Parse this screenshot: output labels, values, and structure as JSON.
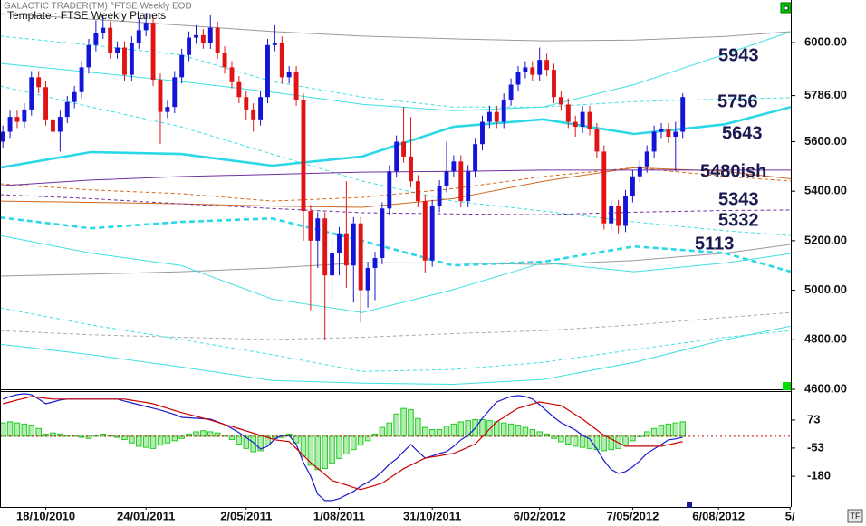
{
  "chart_data": [
    {
      "type": "candlestick",
      "subtitle": "GALACTIC TRADER(TM)   ^FTSE Weekly EOD",
      "title": "Template : FTSE Weekly Planets",
      "xlim": [
        -0.4,
        110.1
      ],
      "ylim": [
        4600,
        6172
      ],
      "yticks": [
        {
          "value": 6000,
          "label": "6000.00"
        },
        {
          "value": 5600,
          "label": "5600.00"
        },
        {
          "value": 5400,
          "label": "5400.00"
        },
        {
          "value": 5200,
          "label": "5200.00"
        },
        {
          "value": 5000,
          "label": "5000.00"
        },
        {
          "value": 4800,
          "label": "4800.00"
        },
        {
          "value": 4600,
          "label": "4600.00"
        }
      ],
      "last_price": {
        "value": 5786,
        "label": "5786.00"
      },
      "up_color": "#1414d8",
      "down_color": "#e01414",
      "open": [
        5600,
        5640,
        5700,
        5680,
        5730,
        5860,
        5820,
        5690,
        5640,
        5700,
        5760,
        5800,
        5900,
        5990,
        6040,
        6060,
        5960,
        5980,
        5870,
        6000,
        6050,
        6080,
        5850,
        5720,
        5740,
        5860,
        5950,
        6020,
        6030,
        6000,
        6060,
        5960,
        5900,
        5840,
        5780,
        5730,
        5690,
        5780,
        5990,
        6000,
        5860,
        5880,
        5770,
        5320,
        5200,
        5290,
        5060,
        5150,
        5230,
        5100,
        5270,
        5000,
        5090,
        5130,
        5330,
        5480,
        5600,
        5540,
        5440,
        5360,
        5120,
        5340,
        5420,
        5480,
        5520,
        5360,
        5480,
        5590,
        5680,
        5720,
        5680,
        5770,
        5830,
        5880,
        5900,
        5870,
        5930,
        5890,
        5780,
        5750,
        5680,
        5660,
        5720,
        5650,
        5560,
        5270,
        5340,
        5260,
        5380,
        5460,
        5500,
        5560,
        5640,
        5650,
        5620,
        5640
      ],
      "high": [
        5665,
        5725,
        5725,
        5755,
        5885,
        5885,
        5845,
        5715,
        5725,
        5785,
        5825,
        5925,
        6015,
        6090,
        6110,
        6085,
        6005,
        6005,
        6025,
        6100,
        6120,
        6105,
        5875,
        5765,
        5885,
        5975,
        6045,
        6070,
        6055,
        6110,
        6085,
        5985,
        5925,
        5865,
        5805,
        5755,
        5805,
        6015,
        6070,
        6025,
        5905,
        5905,
        5795,
        5345,
        5315,
        5315,
        5215,
        5255,
        5440,
        5295,
        5295,
        5115,
        5155,
        5355,
        5505,
        5625,
        5740,
        5700,
        5465,
        5385,
        5365,
        5445,
        5600,
        5545,
        5545,
        5505,
        5615,
        5705,
        5745,
        5745,
        5795,
        5855,
        5905,
        5925,
        5925,
        5980,
        5955,
        5915,
        5805,
        5775,
        5705,
        5745,
        5745,
        5675,
        5585,
        5365,
        5365,
        5405,
        5485,
        5525,
        5585,
        5665,
        5675,
        5675,
        5680,
        5795
      ],
      "low": [
        5575,
        5615,
        5655,
        5655,
        5705,
        5795,
        5665,
        5580,
        5560,
        5675,
        5735,
        5775,
        5875,
        5965,
        6015,
        5935,
        5935,
        5845,
        5845,
        5975,
        6025,
        5825,
        5590,
        5695,
        5715,
        5835,
        5925,
        5995,
        5975,
        5975,
        5935,
        5875,
        5815,
        5755,
        5690,
        5640,
        5665,
        5755,
        5965,
        5835,
        5835,
        5745,
        5200,
        4920,
        5090,
        4800,
        4960,
        5060,
        5010,
        4950,
        4870,
        4930,
        4960,
        5105,
        5305,
        5455,
        5515,
        5415,
        5335,
        5070,
        5095,
        5315,
        5395,
        5455,
        5335,
        5335,
        5455,
        5565,
        5655,
        5655,
        5655,
        5745,
        5805,
        5855,
        5845,
        5845,
        5865,
        5755,
        5725,
        5655,
        5620,
        5635,
        5625,
        5535,
        5245,
        5245,
        5230,
        5235,
        5355,
        5435,
        5475,
        5535,
        5615,
        5595,
        5480,
        5615
      ],
      "close": [
        5640,
        5700,
        5680,
        5730,
        5860,
        5820,
        5690,
        5640,
        5700,
        5760,
        5800,
        5900,
        5990,
        6040,
        6060,
        5960,
        5980,
        5870,
        6000,
        6050,
        6080,
        5850,
        5720,
        5740,
        5860,
        5950,
        6020,
        6030,
        6000,
        6060,
        5960,
        5900,
        5840,
        5780,
        5730,
        5690,
        5780,
        5990,
        6000,
        5860,
        5880,
        5770,
        5320,
        5200,
        5290,
        5060,
        5150,
        5230,
        5100,
        5270,
        5000,
        5090,
        5130,
        5330,
        5480,
        5600,
        5540,
        5440,
        5360,
        5120,
        5340,
        5420,
        5480,
        5520,
        5360,
        5480,
        5590,
        5680,
        5720,
        5680,
        5770,
        5830,
        5880,
        5900,
        5870,
        5930,
        5890,
        5780,
        5750,
        5680,
        5660,
        5720,
        5650,
        5560,
        5270,
        5340,
        5260,
        5380,
        5460,
        5500,
        5560,
        5640,
        5650,
        5620,
        5640,
        5780
      ],
      "planet_lines": {
        "x": [
          -0.4,
          12.3,
          24.9,
          37.6,
          50.2,
          62.9,
          75.5,
          88.2,
          100.9,
          110.1
        ],
        "lines": [
          {
            "color": "#999999",
            "values": [
              6117,
              6095,
              6070,
              6045,
              6026,
              6015,
              6007,
              6010,
              6025,
              6044
            ]
          },
          {
            "color": "#999999",
            "values": [
              5057,
              5065,
              5075,
              5090,
              5111,
              5110,
              5104,
              5120,
              5150,
              5185
            ]
          },
          {
            "color": "#aaaaaa",
            "dashed": true,
            "values": [
              4837,
              4820,
              4810,
              4801,
              4810,
              4825,
              4837,
              4860,
              4890,
              4910
            ]
          },
          {
            "color": "#3ee0e0",
            "values": [
              5916,
              5880,
              5843,
              5800,
              5751,
              5725,
              5740,
              5830,
              5953,
              6044
            ]
          },
          {
            "color": "#3ee0e0",
            "dashed": true,
            "values": [
              6026,
              5990,
              5950,
              5843,
              5780,
              5740,
              5740,
              5762,
              5772,
              5777
            ]
          },
          {
            "color": "#3ee0e0",
            "values": [
              5221,
              5150,
              5100,
              4965,
              4910,
              5002,
              5111,
              5075,
              5110,
              5148
            ]
          },
          {
            "color": "#3ee0e0",
            "values": [
              4782,
              4740,
              4690,
              4636,
              4625,
              4620,
              4640,
              4709,
              4800,
              4855
            ]
          },
          {
            "color": "#3ee0e0",
            "dashed": true,
            "values": [
              4929,
              4860,
              4801,
              4740,
              4672,
              4680,
              4709,
              4760,
              4810,
              4837
            ]
          },
          {
            "color": "#3ee0e0",
            "dashed": true,
            "values": [
              5825,
              5740,
              5660,
              5550,
              5441,
              5360,
              5320,
              5276,
              5240,
              5221
            ]
          },
          {
            "color": "#d2691e",
            "dashed": true,
            "values": [
              5430,
              5405,
              5390,
              5360,
              5375,
              5410,
              5459,
              5495,
              5460,
              5441
            ]
          },
          {
            "color": "#d2691e",
            "values": [
              5360,
              5355,
              5349,
              5340,
              5335,
              5370,
              5440,
              5495,
              5480,
              5450
            ]
          },
          {
            "color": "#7030a0",
            "dashed": true,
            "values": [
              5386,
              5370,
              5349,
              5330,
              5313,
              5308,
              5305,
              5315,
              5322,
              5324
            ]
          },
          {
            "color": "#7030a0",
            "values": [
              5422,
              5445,
              5459,
              5468,
              5477,
              5480,
              5485,
              5485,
              5485,
              5485
            ]
          },
          {
            "color": "#2ad8e8",
            "thick": true,
            "values": [
              5495,
              5558,
              5550,
              5503,
              5540,
              5660,
              5690,
              5631,
              5670,
              5740
            ]
          },
          {
            "color": "#2ad8e8",
            "thick": true,
            "dashed": true,
            "values": [
              5294,
              5250,
              5276,
              5290,
              5200,
              5100,
              5115,
              5177,
              5150,
              5075
            ]
          }
        ]
      },
      "annotations": [
        "5943",
        "5756",
        "5643",
        "5480ish",
        "5343",
        "5332",
        "5113"
      ]
    },
    {
      "type": "macd",
      "xlim": [
        -0.4,
        110.1
      ],
      "ylim": [
        -318,
        203
      ],
      "yticks": [
        73,
        -53,
        -180
      ],
      "xticks": [
        {
          "value": 6,
          "label": "18/10/2010"
        },
        {
          "value": 20,
          "label": "24/01/2011"
        },
        {
          "value": 34,
          "label": "2/05/2011"
        },
        {
          "value": 47,
          "label": "1/08/2011"
        },
        {
          "value": 60,
          "label": "31/10/2011"
        },
        {
          "value": 75,
          "label": "6/02/2012"
        },
        {
          "value": 88,
          "label": "7/05/2012"
        },
        {
          "value": 100,
          "label": "6/08/2012"
        },
        {
          "value": 110,
          "label": "5/"
        }
      ],
      "histogram": {
        "color": "#22cc22",
        "values": [
          60,
          65,
          60,
          55,
          50,
          35,
          10,
          15,
          10,
          5,
          5,
          -5,
          -10,
          5,
          10,
          5,
          -5,
          -15,
          -30,
          -45,
          -50,
          -55,
          -40,
          -30,
          -20,
          -10,
          10,
          20,
          25,
          20,
          15,
          5,
          -15,
          -35,
          -55,
          -70,
          -65,
          -40,
          -10,
          -5,
          10,
          -30,
          -90,
          -130,
          -150,
          -145,
          -120,
          -100,
          -80,
          -60,
          -40,
          -20,
          10,
          40,
          60,
          100,
          125,
          120,
          80,
          40,
          30,
          30,
          45,
          55,
          65,
          70,
          75,
          75,
          70,
          65,
          60,
          55,
          50,
          40,
          30,
          20,
          10,
          -10,
          -25,
          -35,
          -45,
          -50,
          -55,
          -60,
          -65,
          -60,
          -55,
          -40,
          -20,
          0,
          20,
          35,
          50,
          55,
          60,
          65
        ]
      },
      "series": [
        {
          "color": "#1a1acc",
          "values": [
            167,
            179,
            187,
            191,
            187,
            167,
            146,
            154,
            163,
            167,
            167,
            167,
            167,
            167,
            167,
            167,
            167,
            158,
            150,
            142,
            134,
            126,
            118,
            108,
            98,
            85,
            83,
            81,
            79,
            77,
            65,
            53,
            35,
            16,
            -6,
            -28,
            -57,
            -45,
            -12,
            4,
            4,
            -37,
            -118,
            -179,
            -260,
            -289,
            -289,
            -280,
            -264,
            -248,
            -224,
            -207,
            -187,
            -159,
            -126,
            -102,
            -69,
            -37,
            -69,
            -98,
            -89,
            -77,
            -69,
            -45,
            -16,
            4,
            37,
            81,
            118,
            154,
            167,
            179,
            183,
            179,
            167,
            142,
            114,
            85,
            61,
            45,
            28,
            4,
            -12,
            -57,
            -110,
            -150,
            -167,
            -159,
            -138,
            -110,
            -77,
            -57,
            -37,
            -16,
            -12,
            -4
          ]
        },
        {
          "color": "#cc0000",
          "values": [
            146,
            154,
            163,
            171,
            179,
            175,
            171,
            167,
            167,
            167,
            167,
            167,
            167,
            167,
            167,
            167,
            167,
            167,
            162,
            157,
            152,
            146,
            136,
            126,
            116,
            106,
            98,
            90,
            81,
            73,
            63,
            53,
            44,
            34,
            24,
            14,
            4,
            -6,
            -16,
            -20,
            -24,
            -55,
            -87,
            -118,
            -145,
            -172,
            -199,
            -209,
            -219,
            -230,
            -240,
            -230,
            -221,
            -211,
            -189,
            -168,
            -146,
            -130,
            -114,
            -98,
            -93,
            -88,
            -82,
            -77,
            -63,
            -49,
            -35,
            -2,
            32,
            65,
            85,
            106,
            126,
            135,
            145,
            154,
            149,
            143,
            138,
            118,
            97,
            77,
            53,
            28,
            4,
            -12,
            -29,
            -45,
            -45,
            -45,
            -45,
            -45,
            -45,
            -38,
            -31,
            -24
          ]
        }
      ]
    }
  ],
  "ui": {
    "tf_button": "TF"
  }
}
